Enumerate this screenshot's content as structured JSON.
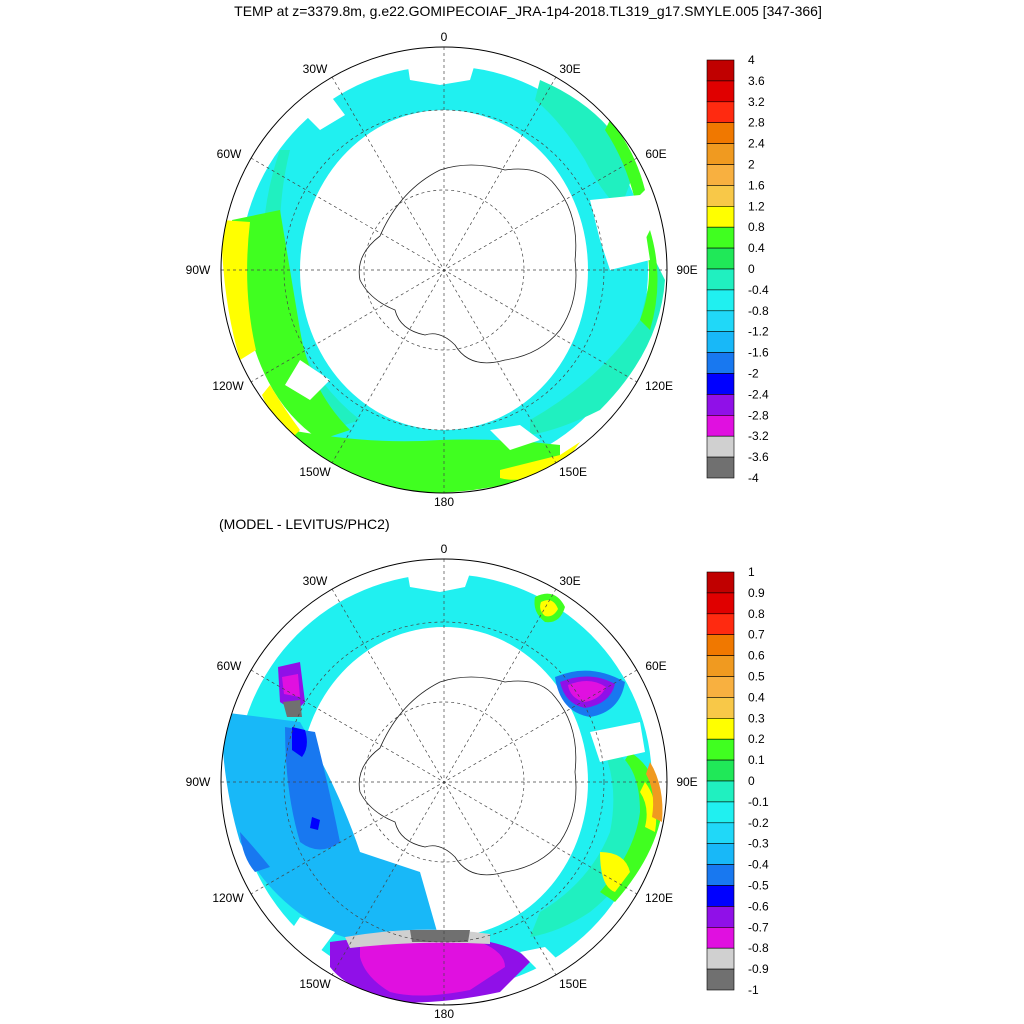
{
  "title": "TEMP at z=3379.8m, g.e22.GOMIPECOIAF_JRA-1p4-2018.TL319_g17.SMYLE.005 [347-366]",
  "subtitle": "(MODEL - LEVITUS/PHC2)",
  "longitude_labels": {
    "lon_0": "0",
    "lon_30e": "30E",
    "lon_60e": "60E",
    "lon_90e": "90E",
    "lon_120e": "120E",
    "lon_150e": "150E",
    "lon_180": "180",
    "lon_150w": "150W",
    "lon_120w": "120W",
    "lon_90w": "90W",
    "lon_60w": "60W",
    "lon_30w": "30W"
  },
  "top_map": {
    "variable": "TEMP",
    "colorbar_labels": [
      "4",
      "3.6",
      "3.2",
      "2.8",
      "2.4",
      "2",
      "1.6",
      "1.2",
      "0.8",
      "0.4",
      "0",
      "-0.4",
      "-0.8",
      "-1.2",
      "-1.6",
      "-2",
      "-2.4",
      "-2.8",
      "-3.2",
      "-3.6",
      "-4"
    ],
    "colorbar_colors": [
      "#c00000",
      "#e00000",
      "#ff2a10",
      "#f07800",
      "#f09a20",
      "#f8b040",
      "#f8c848",
      "#ffff00",
      "#40ff20",
      "#20e858",
      "#20f0c0",
      "#20f0f0",
      "#20d8f8",
      "#18b8f8",
      "#1878f0",
      "#0000ff",
      "#9010e8",
      "#e010e0",
      "#d0d0d0",
      "#707070"
    ]
  },
  "bottom_map": {
    "variable": "MODEL - LEVITUS/PHC2",
    "colorbar_labels": [
      "1",
      "0.9",
      "0.8",
      "0.7",
      "0.6",
      "0.5",
      "0.4",
      "0.3",
      "0.2",
      "0.1",
      "0",
      "-0.1",
      "-0.2",
      "-0.3",
      "-0.4",
      "-0.5",
      "-0.6",
      "-0.7",
      "-0.8",
      "-0.9",
      "-1"
    ],
    "colorbar_colors": [
      "#c00000",
      "#e00000",
      "#ff2a10",
      "#f07800",
      "#f09a20",
      "#f8b040",
      "#f8c848",
      "#ffff00",
      "#40ff20",
      "#20e858",
      "#20f0c0",
      "#20f0f0",
      "#20d8f8",
      "#18b8f8",
      "#1878f0",
      "#0000ff",
      "#9010e8",
      "#e010e0",
      "#d0d0d0",
      "#707070"
    ]
  }
}
